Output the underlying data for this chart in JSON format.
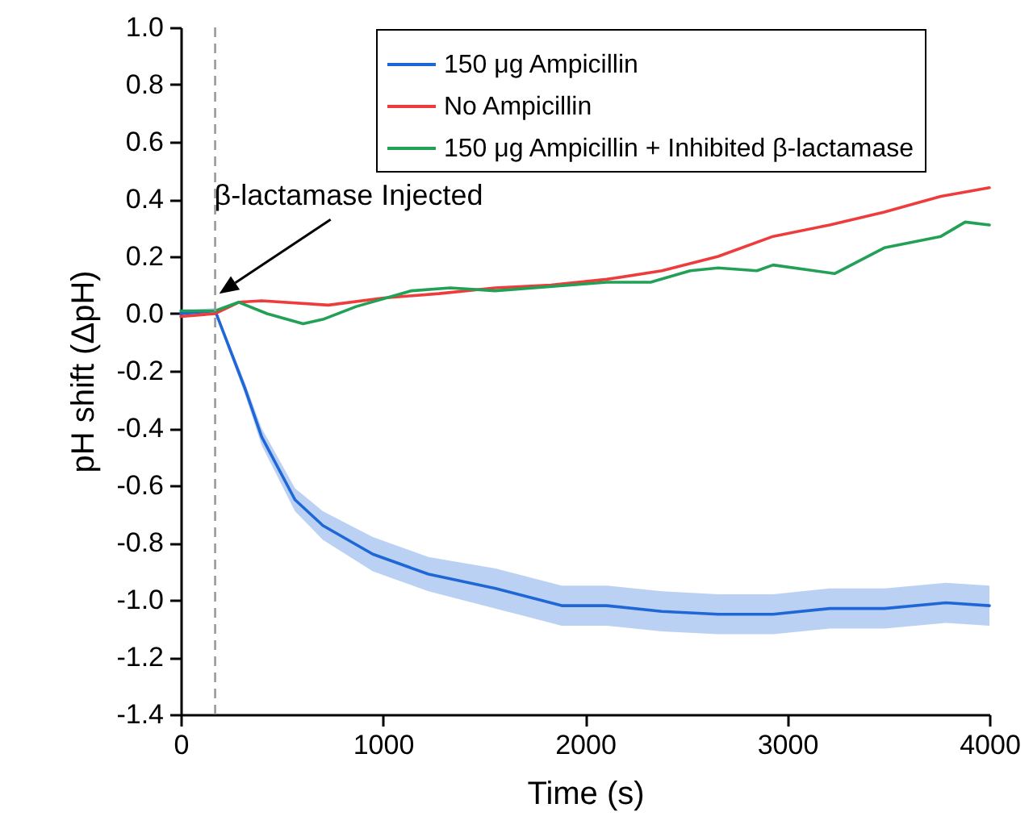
{
  "chart_data": {
    "type": "line",
    "xlabel": "Time (s)",
    "ylabel": "pH shift (ΔpH)",
    "xlim": [
      0,
      4000
    ],
    "xticks": [
      0,
      1000,
      2000,
      3000,
      4000
    ],
    "ylim": [
      -1.4,
      1.0
    ],
    "yticks": [
      {
        "value": -1.4,
        "label": "-1.4"
      },
      {
        "value": -1.2,
        "label": "-1.2"
      },
      {
        "value": -1,
        "label": "-1.0"
      },
      {
        "value": -0.8,
        "label": "-0.8"
      },
      {
        "value": -0.6,
        "label": "-0.6"
      },
      {
        "value": -0.4,
        "label": "-0.4"
      },
      {
        "value": -0.2,
        "label": "-0.2"
      },
      {
        "value": 0,
        "label": "0.0"
      },
      {
        "value": 0.2,
        "label": "0.2"
      },
      {
        "value": 0.4,
        "label": "0.4"
      },
      {
        "value": 0.6,
        "label": "0.6"
      },
      {
        "value": 0.8,
        "label": "0.8"
      },
      {
        "value": 1,
        "label": "1.0"
      }
    ],
    "grid": false,
    "legend": "top right",
    "marker": "none",
    "line_style": "solid",
    "series": [
      {
        "name": "150 μg Ampicillin",
        "color": "#1f66d6",
        "x": [
          0,
          170,
          317,
          400,
          565,
          703,
          950,
          1225,
          1557,
          1884,
          2108,
          2380,
          2659,
          2930,
          3210,
          3481,
          3785,
          4000
        ],
        "values": [
          0,
          0.01,
          -0.26,
          -0.43,
          -0.65,
          -0.74,
          -0.84,
          -0.91,
          -0.96,
          -1.02,
          -1.02,
          -1.04,
          -1.05,
          -1.05,
          -1.03,
          -1.03,
          -1.01,
          -1.02
        ],
        "lower": [
          -0.01,
          0,
          -0.28,
          -0.46,
          -0.69,
          -0.79,
          -0.9,
          -0.97,
          -1.03,
          -1.09,
          -1.09,
          -1.11,
          -1.12,
          -1.12,
          -1.1,
          -1.1,
          -1.08,
          -1.09
        ],
        "upper": [
          0.01,
          0.02,
          -0.24,
          -0.4,
          -0.61,
          -0.69,
          -0.78,
          -0.85,
          -0.89,
          -0.95,
          -0.95,
          -0.97,
          -0.98,
          -0.98,
          -0.96,
          -0.96,
          -0.94,
          -0.95
        ]
      },
      {
        "name": "No Ampicillin",
        "color": "#ee3b3b",
        "x": [
          0,
          170,
          287,
          400,
          730,
          1005,
          1277,
          1555,
          1830,
          2107,
          2380,
          2658,
          2930,
          3210,
          3480,
          3760,
          4000
        ],
        "values": [
          -0.01,
          0,
          0.04,
          0.045,
          0.03,
          0.055,
          0.07,
          0.09,
          0.1,
          0.12,
          0.15,
          0.2,
          0.27,
          0.31,
          0.355,
          0.41,
          0.44
        ]
      },
      {
        "name": "150 μg Ampicillin + Inhibited β-lactamase",
        "color": "#22a055",
        "x": [
          0,
          170,
          287,
          427,
          605,
          703,
          868,
          1142,
          1333,
          1555,
          2107,
          2324,
          2520,
          2658,
          2850,
          2930,
          3234,
          3480,
          3760,
          3880,
          4000
        ],
        "values": [
          0.01,
          0.01,
          0.04,
          0,
          -0.035,
          -0.02,
          0.025,
          0.08,
          0.09,
          0.08,
          0.11,
          0.11,
          0.15,
          0.16,
          0.15,
          0.17,
          0.14,
          0.23,
          0.27,
          0.32,
          0.31
        ]
      }
    ],
    "ref_lines": [
      {
        "axis": "x",
        "value": 170,
        "label": null,
        "color": "#999999",
        "line_style": "dashed"
      }
    ],
    "annotations": [
      {
        "text": "β-lactamase Injected",
        "x": 190,
        "y": 0.07
      }
    ]
  }
}
